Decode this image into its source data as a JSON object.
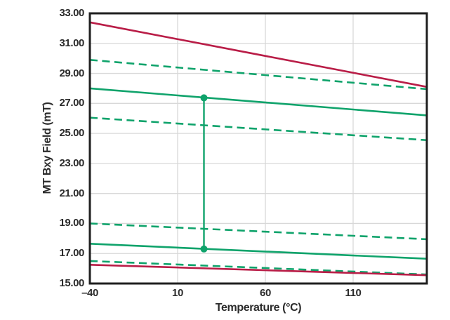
{
  "chart_data": {
    "type": "line",
    "title": "",
    "xlabel": "Temperature (°C)",
    "ylabel": "MT Bxy Field (mT)",
    "xlim": [
      -40,
      152
    ],
    "ylim": [
      15,
      33
    ],
    "grid": {
      "on": true,
      "x_values": [
        10,
        60,
        110
      ],
      "y_values": [
        17,
        19,
        21,
        23,
        25,
        27,
        29,
        31
      ]
    },
    "x_ticks": [
      {
        "value": -40,
        "label": "–40"
      },
      {
        "value": 10,
        "label": "10"
      },
      {
        "value": 60,
        "label": "60"
      },
      {
        "value": 110,
        "label": "110"
      }
    ],
    "y_ticks": [
      {
        "value": 33,
        "label": "33.00"
      },
      {
        "value": 31,
        "label": "31.00"
      },
      {
        "value": 29,
        "label": "29.00"
      },
      {
        "value": 27,
        "label": "27.00"
      },
      {
        "value": 25,
        "label": "25.00"
      },
      {
        "value": 23,
        "label": "23.00"
      },
      {
        "value": 21,
        "label": "21.00"
      },
      {
        "value": 19,
        "label": "19.00"
      },
      {
        "value": 17,
        "label": "17.00"
      },
      {
        "value": 15,
        "label": "15.00"
      }
    ],
    "legend": {
      "visible": false
    },
    "series": [
      {
        "name": "bxy-max-red-solid",
        "style": "solid",
        "color": "#B91D47",
        "points": [
          [
            -40,
            32.4
          ],
          [
            152,
            28.1
          ]
        ]
      },
      {
        "name": "bxy-upper-green-dashed",
        "style": "dashed",
        "color": "#0FA36B",
        "points": [
          [
            -40,
            29.9
          ],
          [
            152,
            27.95
          ]
        ]
      },
      {
        "name": "bxy-upper-green-solid",
        "style": "solid",
        "color": "#0FA36B",
        "points": [
          [
            -40,
            28.0
          ],
          [
            152,
            26.2
          ]
        ]
      },
      {
        "name": "bxy-mid-upper-green-dashed",
        "style": "dashed",
        "color": "#0FA36B",
        "points": [
          [
            -40,
            26.05
          ],
          [
            152,
            24.55
          ]
        ]
      },
      {
        "name": "bxy-mid-lower-green-dashed",
        "style": "dashed",
        "color": "#0FA36B",
        "points": [
          [
            -40,
            19.0
          ],
          [
            152,
            17.95
          ]
        ]
      },
      {
        "name": "bxy-lower-green-solid",
        "style": "solid",
        "color": "#0FA36B",
        "points": [
          [
            -40,
            17.65
          ],
          [
            152,
            16.65
          ]
        ]
      },
      {
        "name": "bxy-lower-green-dashed",
        "style": "dashed",
        "color": "#0FA36B",
        "points": [
          [
            -40,
            16.5
          ],
          [
            152,
            15.6
          ]
        ]
      },
      {
        "name": "bxy-min-red-solid",
        "style": "solid",
        "color": "#B91D47",
        "points": [
          [
            -40,
            16.25
          ],
          [
            152,
            15.55
          ]
        ]
      }
    ],
    "annotations": [
      {
        "name": "delta-connector",
        "type": "vertical-line-with-end-markers",
        "color": "#0FA36B",
        "x": 25,
        "y_start": 17.3,
        "y_end": 27.37
      }
    ],
    "colors": {
      "green": "#0FA36B",
      "red": "#B91D47",
      "grid": "#D8D8D8",
      "frame": "#1F1F1F",
      "text": "#2B2B2B"
    }
  }
}
